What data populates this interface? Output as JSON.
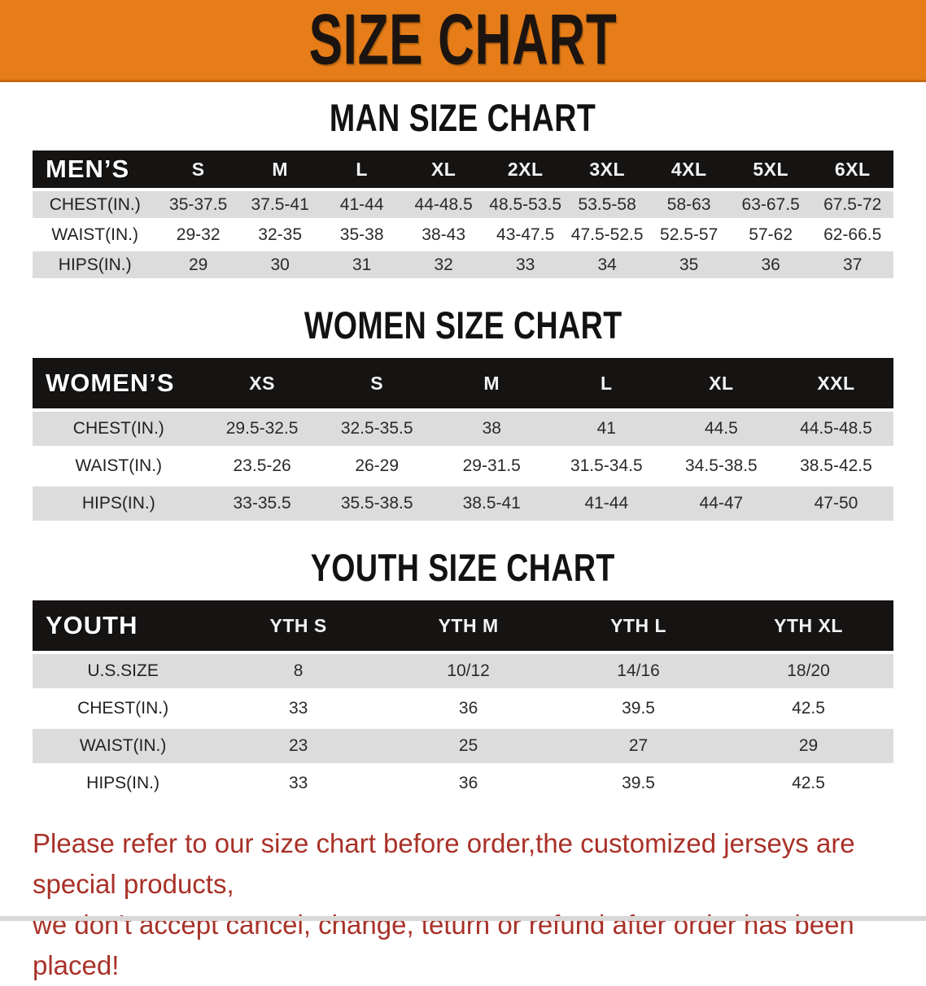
{
  "banner": {
    "title": "SIZE CHART",
    "bg_color": "#e67d18",
    "edge_color": "#c8690f",
    "text_color": "#1c1410"
  },
  "theme": {
    "table_header_bg": "#161313",
    "stripe_row_bg": "#dcdcdc",
    "note_color": "#a93128"
  },
  "sections": [
    {
      "id": "men",
      "heading": "MAN SIZE CHART",
      "table": {
        "header_label": "MEN’S",
        "sizes": [
          "S",
          "M",
          "L",
          "XL",
          "2XL",
          "3XL",
          "4XL",
          "5XL",
          "6XL"
        ],
        "rows": [
          {
            "label": "CHEST(IN.)",
            "values": [
              "35-37.5",
              "37.5-41",
              "41-44",
              "44-48.5",
              "48.5-53.5",
              "53.5-58",
              "58-63",
              "63-67.5",
              "67.5-72"
            ]
          },
          {
            "label": "WAIST(IN.)",
            "values": [
              "29-32",
              "32-35",
              "35-38",
              "38-43",
              "43-47.5",
              "47.5-52.5",
              "52.5-57",
              "57-62",
              "62-66.5"
            ]
          },
          {
            "label": "HIPS(IN.)",
            "values": [
              "29",
              "30",
              "31",
              "32",
              "33",
              "34",
              "35",
              "36",
              "37"
            ]
          }
        ]
      }
    },
    {
      "id": "women",
      "heading": "WOMEN SIZE CHART",
      "table": {
        "header_label": "WOMEN’S",
        "sizes": [
          "XS",
          "S",
          "M",
          "L",
          "XL",
          "XXL"
        ],
        "rows": [
          {
            "label": "CHEST(IN.)",
            "values": [
              "29.5-32.5",
              "32.5-35.5",
              "38",
              "41",
              "44.5",
              "44.5-48.5"
            ]
          },
          {
            "label": "WAIST(IN.)",
            "values": [
              "23.5-26",
              "26-29",
              "29-31.5",
              "31.5-34.5",
              "34.5-38.5",
              "38.5-42.5"
            ]
          },
          {
            "label": "HIPS(IN.)",
            "values": [
              "33-35.5",
              "35.5-38.5",
              "38.5-41",
              "41-44",
              "44-47",
              "47-50"
            ]
          }
        ]
      }
    },
    {
      "id": "youth",
      "heading": "YOUTH SIZE CHART",
      "table": {
        "header_label": "YOUTH",
        "sizes": [
          "YTH S",
          "YTH M",
          "YTH L",
          "YTH XL"
        ],
        "rows": [
          {
            "label": "U.S.SIZE",
            "values": [
              "8",
              "10/12",
              "14/16",
              "18/20"
            ]
          },
          {
            "label": "CHEST(IN.)",
            "values": [
              "33",
              "36",
              "39.5",
              "42.5"
            ]
          },
          {
            "label": "WAIST(IN.)",
            "values": [
              "23",
              "25",
              "27",
              "29"
            ]
          },
          {
            "label": "HIPS(IN.)",
            "values": [
              "33",
              "36",
              "39.5",
              "42.5"
            ]
          }
        ]
      }
    }
  ],
  "footer_note": {
    "line1": "Please refer to our size chart before order,the customized jerseys are special products,",
    "line2": "we don't accept cancel, change, teturn or refund after order has been placed!"
  }
}
